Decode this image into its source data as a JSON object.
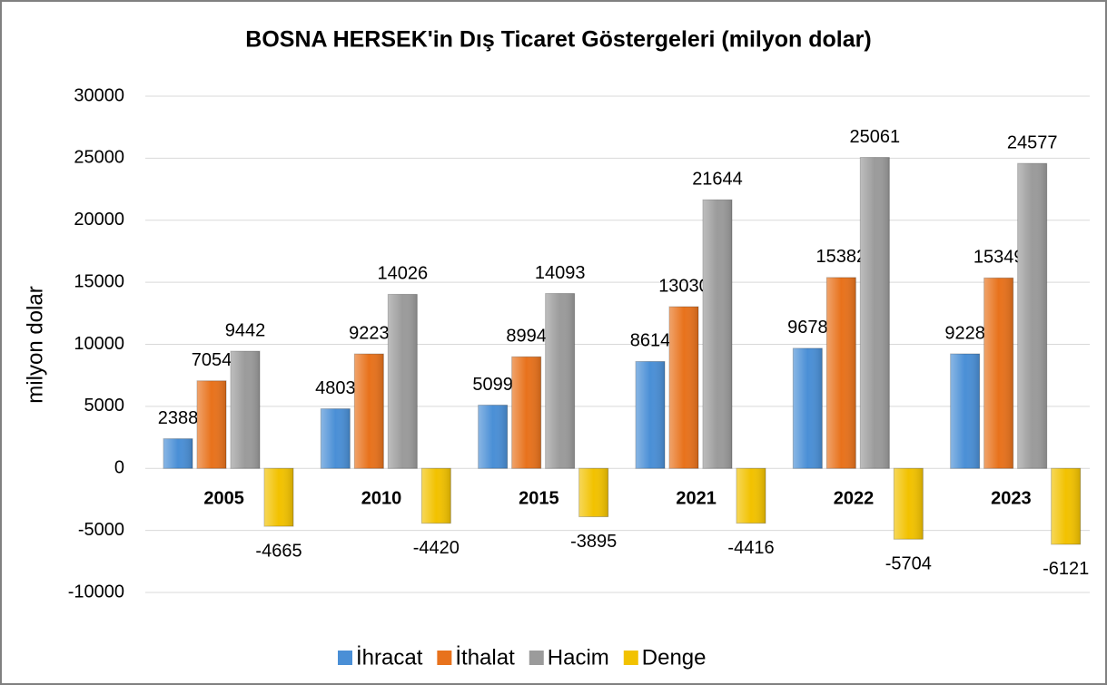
{
  "chart_data": {
    "type": "bar",
    "title": "BOSNA HERSEK'in Dış Ticaret Göstergeleri  (milyon dolar)",
    "y_label": "milyon dolar",
    "categories": [
      "2005",
      "2010",
      "2015",
      "2021",
      "2022",
      "2023"
    ],
    "series": [
      {
        "name": "İhracat",
        "color": "#4a8fd6",
        "values": [
          2388,
          4803,
          5099,
          8614,
          9678,
          9228
        ]
      },
      {
        "name": "İthalat",
        "color": "#e8721c",
        "values": [
          7054,
          9223,
          8994,
          13030,
          15382,
          15349
        ]
      },
      {
        "name": "Hacim",
        "color": "#9b9b9b",
        "values": [
          9442,
          14026,
          14093,
          21644,
          25061,
          24577
        ]
      },
      {
        "name": "Denge",
        "color": "#f2c200",
        "values": [
          -4665,
          -4420,
          -3895,
          -4416,
          -5704,
          -6121
        ]
      }
    ],
    "ylim": [
      -10000,
      30000
    ],
    "yticks": [
      -10000,
      -5000,
      0,
      5000,
      10000,
      15000,
      20000,
      25000,
      30000
    ],
    "grid": true,
    "legend": "bottom"
  }
}
